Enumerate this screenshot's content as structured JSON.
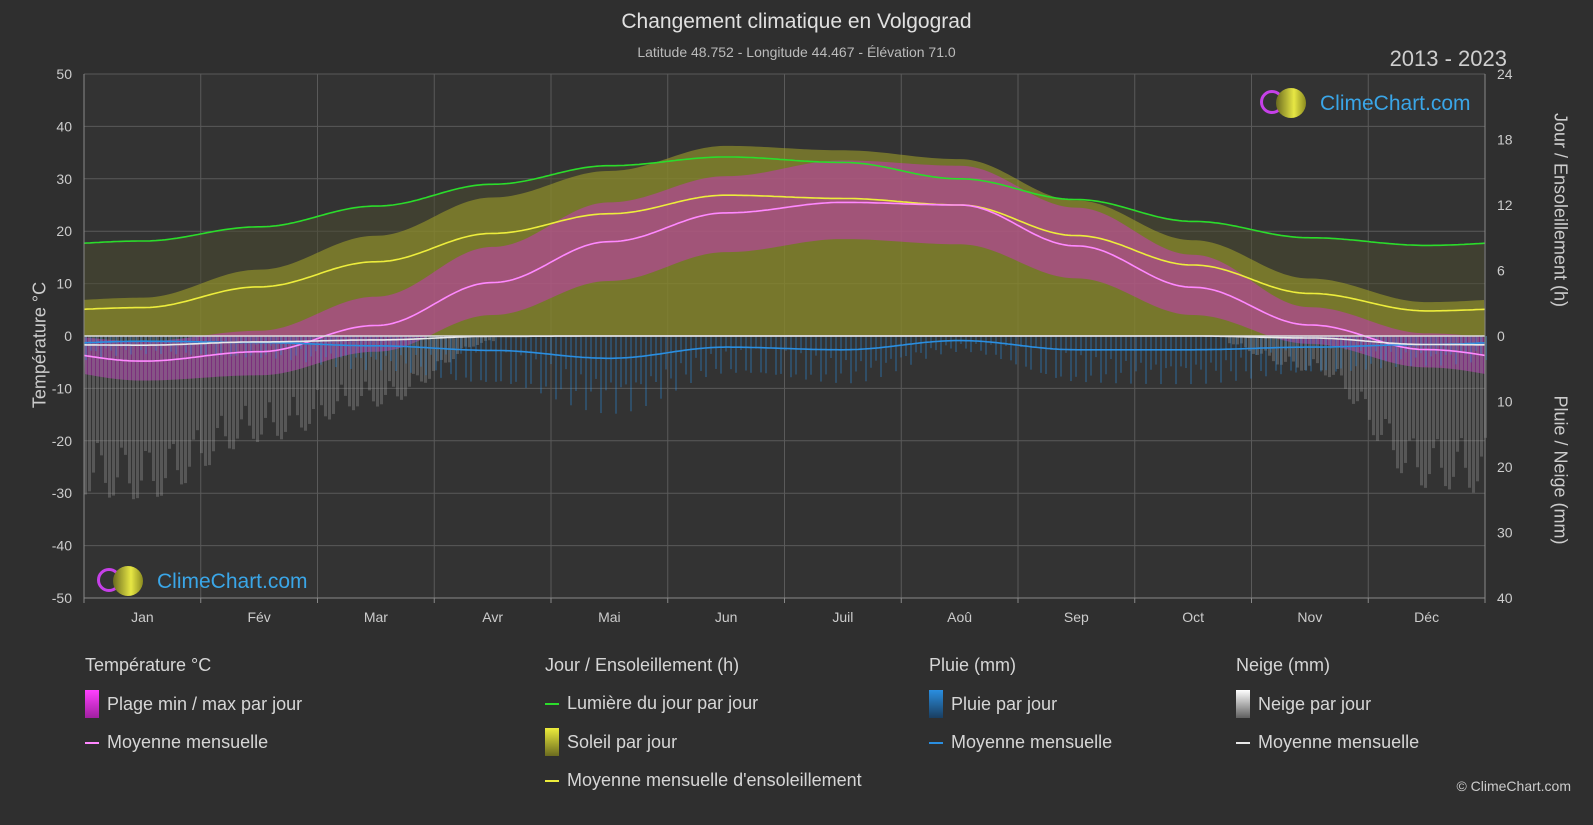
{
  "header": {
    "title": "Changement climatique en Volgograd",
    "subtitle": "Latitude 48.752 - Longitude 44.467 - Élévation 71.0",
    "years": "2013 - 2023"
  },
  "logo": {
    "text": "ClimeChart.com"
  },
  "copyright": "© ClimeChart.com",
  "legend": {
    "temp": {
      "title": "Température °C",
      "range": "Plage min / max par jour",
      "mean": "Moyenne mensuelle"
    },
    "sun": {
      "title": "Jour / Ensoleillement (h)",
      "daylight": "Lumière du jour par jour",
      "sunshine": "Soleil par jour",
      "mean": "Moyenne mensuelle d'ensoleillement"
    },
    "rain": {
      "title": "Pluie (mm)",
      "daily": "Pluie par jour",
      "mean": "Moyenne mensuelle"
    },
    "snow": {
      "title": "Neige (mm)",
      "daily": "Neige par jour",
      "mean": "Moyenne mensuelle"
    }
  },
  "colors": {
    "temp_range": "#d42ad4",
    "temp_mean": "#ff88ff",
    "daylight": "#2bdc2b",
    "sunshine_fill": "#9c9c2a",
    "sunshine_mean": "#eded3c",
    "rain": "#2a8ee0",
    "rain_mean": "#2a8ee0",
    "snow": "#9a9a9a",
    "snow_mean": "#e8e8e8",
    "grid": "#5a5a5a",
    "background": "#2f2f2f"
  },
  "chart_data": {
    "type": "line",
    "title": "Changement climatique en Volgograd",
    "months": [
      "Jan",
      "Fév",
      "Mar",
      "Avr",
      "Mai",
      "Jun",
      "Juil",
      "Aoû",
      "Sep",
      "Oct",
      "Nov",
      "Déc"
    ],
    "axes": {
      "left": {
        "label": "Température °C",
        "min": -50,
        "max": 50,
        "ticks": [
          50,
          40,
          30,
          20,
          10,
          0,
          -10,
          -20,
          -30,
          -40,
          -50
        ]
      },
      "right_top": {
        "label": "Jour / Ensoleillement (h)",
        "min": 0,
        "max": 24,
        "ticks": [
          24,
          18,
          12,
          6,
          0
        ]
      },
      "right_bottom": {
        "label": "Pluie / Neige (mm)",
        "min": 0,
        "max": 40,
        "ticks": [
          10,
          20,
          30,
          40
        ]
      }
    },
    "series": [
      {
        "name": "Lumière du jour par jour",
        "unit": "h",
        "values": [
          8.7,
          10.0,
          11.9,
          13.9,
          15.6,
          16.4,
          15.9,
          14.4,
          12.5,
          10.5,
          9.0,
          8.3
        ]
      },
      {
        "name": "Moyenne mensuelle d'ensoleillement",
        "unit": "h",
        "values": [
          2.6,
          4.5,
          6.8,
          9.4,
          11.2,
          12.9,
          12.6,
          12.0,
          9.2,
          6.5,
          3.9,
          2.3
        ]
      },
      {
        "name": "Moyenne mensuelle",
        "group": "Température °C",
        "unit": "°C",
        "values": [
          -4.8,
          -3.0,
          2.0,
          10.2,
          18.0,
          23.5,
          25.5,
          25.0,
          17.2,
          9.3,
          2.1,
          -2.6
        ]
      },
      {
        "name": "Plage min / max par jour - max",
        "group": "Température °C",
        "unit": "°C",
        "values": [
          -1.0,
          1.0,
          7.5,
          17.0,
          25.5,
          30.5,
          33.5,
          32.5,
          24.5,
          15.5,
          5.5,
          0.5
        ]
      },
      {
        "name": "Plage min / max par jour - min",
        "group": "Température °C",
        "unit": "°C",
        "values": [
          -8.5,
          -7.5,
          -3.0,
          4.0,
          10.5,
          16.0,
          18.5,
          17.5,
          11.0,
          4.0,
          -1.5,
          -6.0
        ]
      },
      {
        "name": "Moyenne mensuelle",
        "group": "Pluie (mm)",
        "unit": "mm",
        "values": [
          0.8,
          1.0,
          1.5,
          2.2,
          3.4,
          1.7,
          2.1,
          0.7,
          2.1,
          2.1,
          1.7,
          1.3
        ]
      },
      {
        "name": "Moyenne mensuelle",
        "group": "Neige (mm)",
        "unit": "mm",
        "values": [
          1.4,
          0.9,
          0.6,
          0.05,
          0.0,
          0.0,
          0.0,
          0.0,
          0.0,
          0.0,
          0.3,
          1.3
        ]
      }
    ]
  }
}
